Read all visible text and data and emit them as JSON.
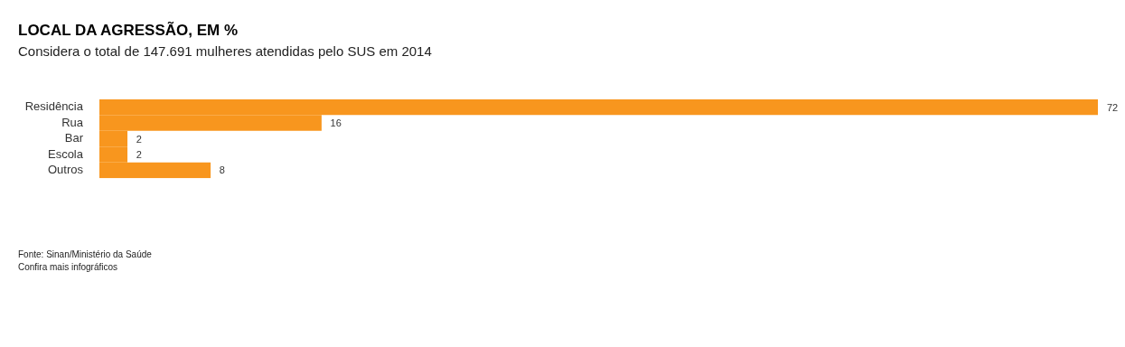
{
  "chart_data": {
    "type": "bar",
    "orientation": "horizontal",
    "title": "LOCAL DA AGRESSÃO, EM %",
    "subtitle": "Considera o total de 147.691 mulheres atendidas pelo SUS em 2014",
    "categories": [
      "Residência",
      "Rua",
      "Bar",
      "Escola",
      "Outros"
    ],
    "values": [
      72,
      16,
      2,
      2,
      8
    ],
    "color": "#f8961e",
    "data_labels": true,
    "annotations": [
      "Fonte: Sinan/Ministério da Saúde",
      "Confira mais infográficos"
    ]
  }
}
